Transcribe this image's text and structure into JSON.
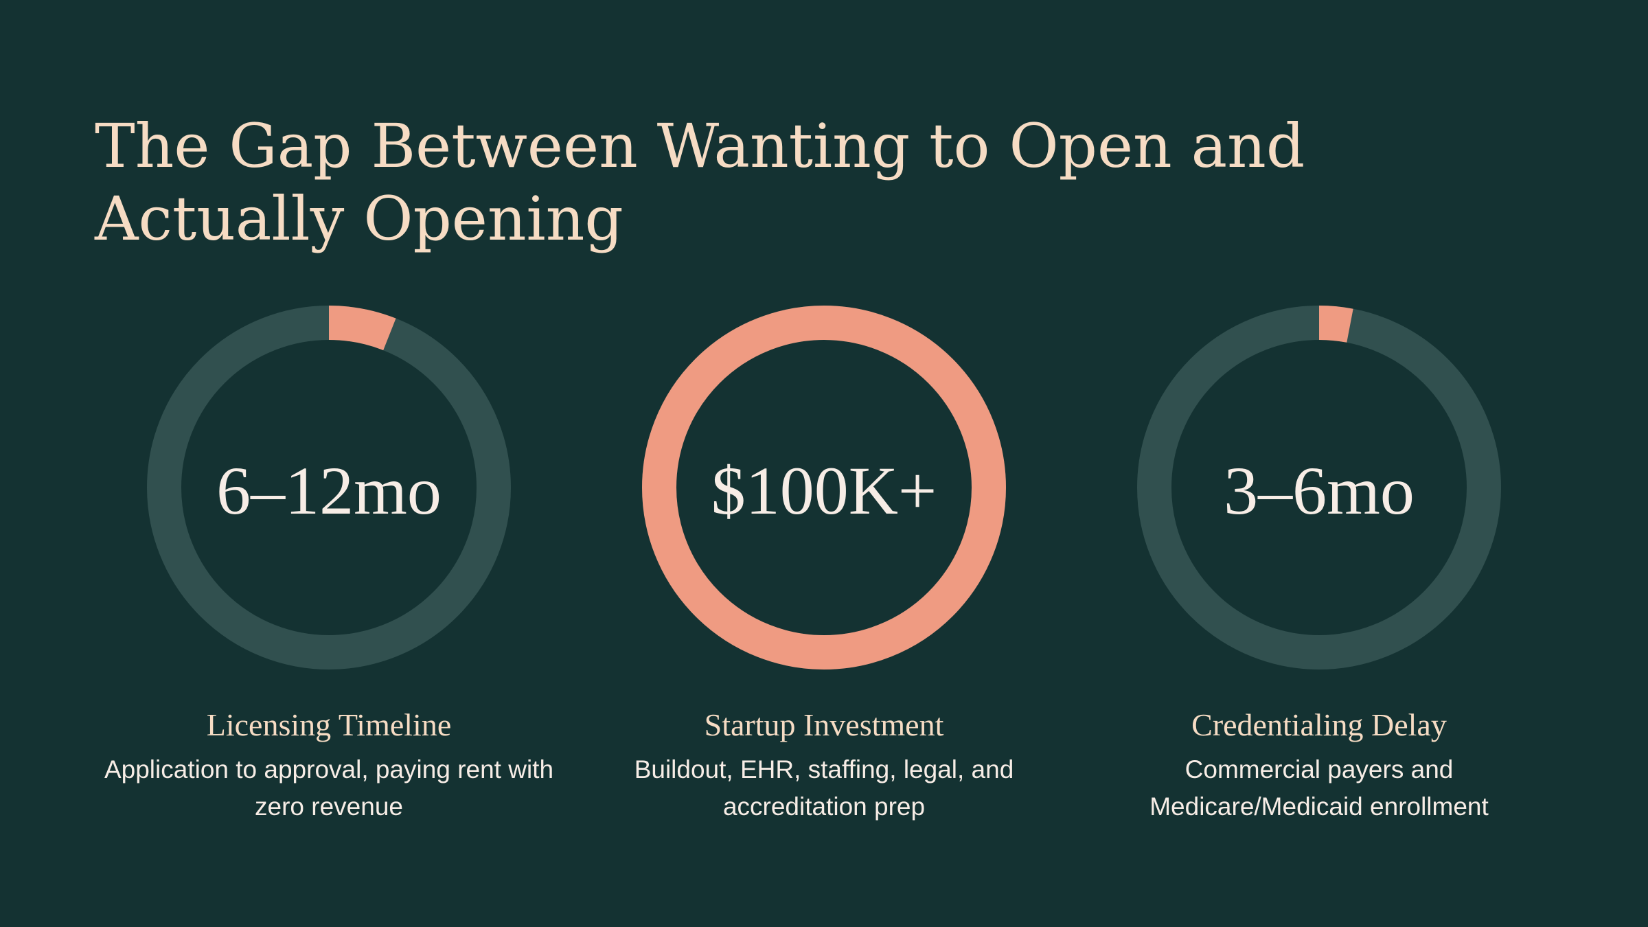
{
  "title": "The Gap Between Wanting to Open and Actually Opening",
  "colors": {
    "background": "#143232",
    "track": "#31504f",
    "accent": "#ef9b82",
    "text": "#f7ede6",
    "heading": "#f6dcc4"
  },
  "stats": [
    {
      "value": "6–12mo",
      "label": "Licensing Timeline",
      "description": "Application to approval, paying rent with zero revenue",
      "fill_percent": 6
    },
    {
      "value": "$100K+",
      "label": "Startup Investment",
      "description": "Buildout, EHR, staffing, legal, and accreditation prep",
      "fill_percent": 100
    },
    {
      "value": "3–6mo",
      "label": "Credentialing Delay",
      "description": "Commercial payers and Medicare/Medicaid enrollment",
      "fill_percent": 3
    }
  ]
}
